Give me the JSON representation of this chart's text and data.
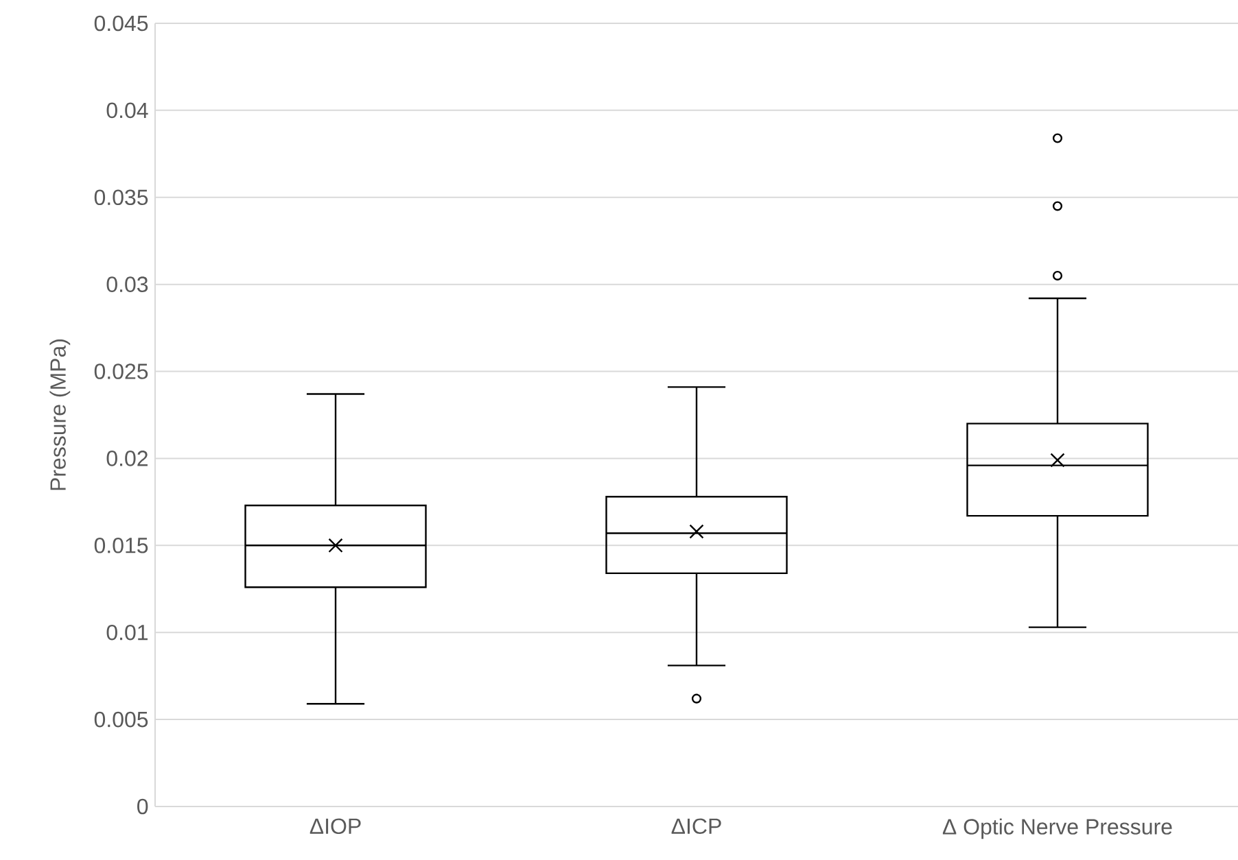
{
  "chart_data": {
    "type": "box",
    "ylabel": "Pressure (MPa)",
    "categories": [
      "ΔIOP",
      "ΔICP",
      "Δ Optic Nerve Pressure"
    ],
    "ylim": [
      0,
      0.045
    ],
    "yticks": [
      0,
      0.005,
      0.01,
      0.015,
      0.02,
      0.025,
      0.03,
      0.035,
      0.04,
      0.045
    ],
    "grid": "y",
    "series": [
      {
        "color": "#000000",
        "boxes": [
          {
            "low": 0.0059,
            "q1": 0.0126,
            "median": 0.015,
            "q3": 0.0173,
            "high": 0.0237,
            "mean": 0.015
          },
          {
            "low": 0.0081,
            "q1": 0.0134,
            "median": 0.0157,
            "q3": 0.0178,
            "high": 0.0241,
            "mean": 0.0158,
            "outliers": [
              0.0062
            ]
          },
          {
            "low": 0.0103,
            "q1": 0.0167,
            "median": 0.0196,
            "q3": 0.022,
            "high": 0.0292,
            "mean": 0.0199,
            "outliers": [
              0.0384,
              0.0345,
              0.0305
            ]
          }
        ]
      }
    ]
  }
}
